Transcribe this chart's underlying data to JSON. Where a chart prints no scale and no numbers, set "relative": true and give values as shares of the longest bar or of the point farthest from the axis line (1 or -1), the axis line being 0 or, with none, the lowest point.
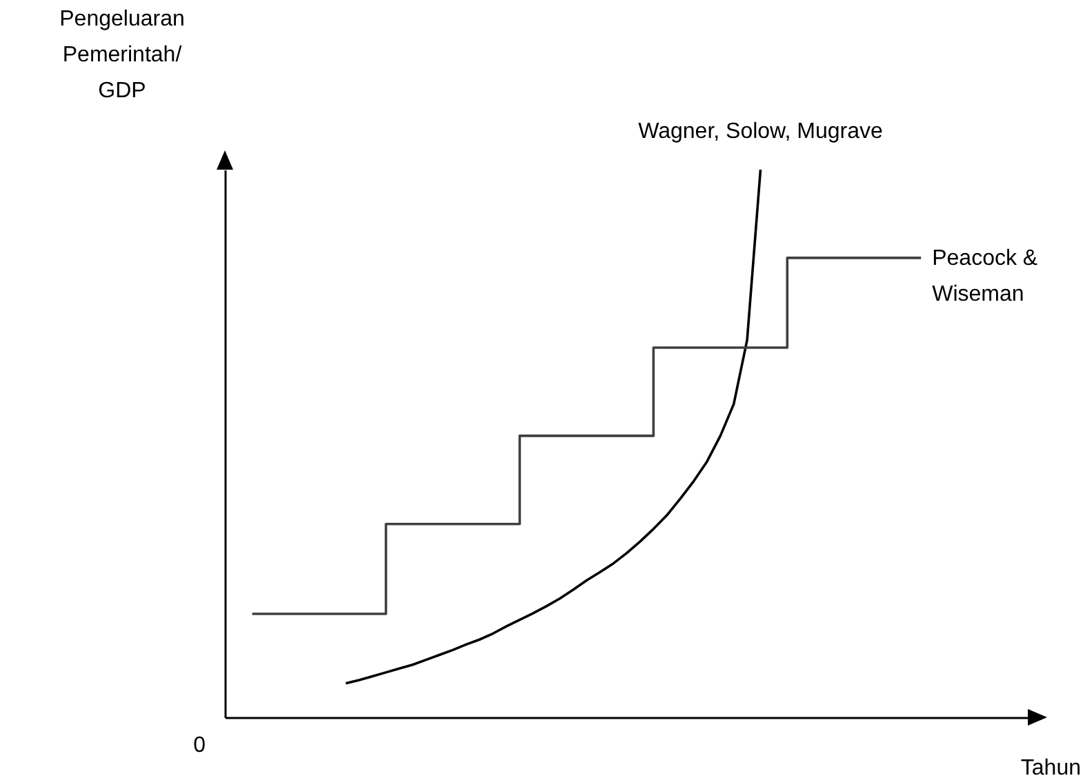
{
  "chart_data": {
    "type": "line",
    "relative": true,
    "xlabel": "Tahun",
    "ylabel": "Pengeluaran Pemerintah/ GDP",
    "grid": false,
    "legend": false,
    "marker": "none",
    "line_style": "solid",
    "annotations": [
      "0"
    ],
    "categories": [
      null,
      null,
      null,
      null,
      null,
      null,
      null,
      null,
      null,
      null,
      null,
      null,
      null,
      null,
      null,
      null,
      null,
      null,
      null,
      null,
      null,
      null,
      null,
      null,
      null,
      null,
      null,
      null,
      null,
      null,
      null,
      null,
      null,
      null,
      null,
      null,
      null,
      null,
      null,
      null,
      null,
      null,
      null,
      null,
      null,
      null,
      null,
      null,
      null,
      null,
      null
    ],
    "series": [
      {
        "name": "Wagner, Solow, Mugrave",
        "type": "line",
        "color": "#000000",
        "values": [
          null,
          null,
          null,
          null,
          null,
          null,
          null,
          0.062,
          0.068,
          0.075,
          0.082,
          0.089,
          0.096,
          0.105,
          0.114,
          0.123,
          0.133,
          0.142,
          0.153,
          0.166,
          0.178,
          0.19,
          0.203,
          0.217,
          0.233,
          0.25,
          0.265,
          0.281,
          0.3,
          0.321,
          0.344,
          0.369,
          0.399,
          0.431,
          0.467,
          0.514,
          0.572,
          0.689,
          1,
          null,
          null,
          null,
          null,
          null,
          null,
          null,
          null,
          null,
          null,
          null,
          null
        ]
      },
      {
        "name": "Peacock & Wiseman",
        "type": "step",
        "color": "#404040",
        "values": [
          0.189,
          0.189,
          0.189,
          0.189,
          0.189,
          0.189,
          0.189,
          0.189,
          0.189,
          0.189,
          0.353,
          0.353,
          0.353,
          0.353,
          0.353,
          0.353,
          0.353,
          0.353,
          0.353,
          0.353,
          0.514,
          0.514,
          0.514,
          0.514,
          0.514,
          0.514,
          0.514,
          0.514,
          0.514,
          0.514,
          0.675,
          0.675,
          0.675,
          0.675,
          0.675,
          0.675,
          0.675,
          0.675,
          0.675,
          0.675,
          0.839,
          0.839,
          0.839,
          0.839,
          0.839,
          0.839,
          0.839,
          0.839,
          0.839,
          0.839,
          0.839
        ]
      }
    ]
  }
}
